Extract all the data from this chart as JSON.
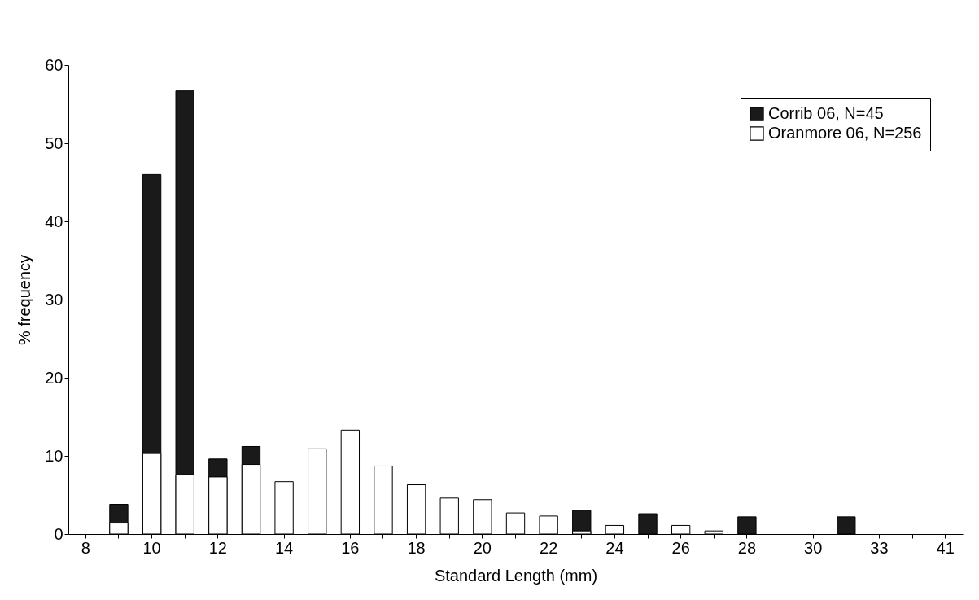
{
  "chart_data": {
    "type": "bar",
    "xlabel": "Standard Length (mm)",
    "ylabel": "% frequency",
    "categories": [
      "8",
      null,
      "10",
      null,
      "12",
      null,
      "14",
      null,
      "16",
      null,
      "18",
      null,
      "20",
      null,
      "22",
      null,
      "24",
      null,
      "26",
      null,
      "28",
      null,
      "30",
      null,
      "33",
      null,
      "41"
    ],
    "series": [
      {
        "name": "Corrib 06, N=45",
        "color": "#1a1a1a",
        "values": [
          null,
          3.8,
          46.0,
          56.7,
          9.6,
          11.2,
          null,
          null,
          null,
          null,
          null,
          null,
          null,
          null,
          null,
          3.0,
          null,
          2.6,
          null,
          null,
          2.2,
          null,
          null,
          2.2,
          null,
          null,
          null
        ]
      },
      {
        "name": "Oranmore 06, N=256",
        "color": "#ffffff",
        "values": [
          null,
          1.4,
          10.3,
          7.6,
          7.3,
          8.9,
          6.7,
          10.9,
          13.3,
          8.7,
          6.3,
          4.6,
          4.4,
          2.7,
          2.3,
          0.4,
          1.1,
          null,
          1.1,
          0.4,
          null,
          null,
          null,
          null,
          null,
          null,
          null
        ]
      }
    ],
    "ylim": [
      0,
      60
    ],
    "yticks": [
      0,
      10,
      20,
      30,
      40,
      50,
      60
    ],
    "grid": false,
    "legend": "top right"
  }
}
